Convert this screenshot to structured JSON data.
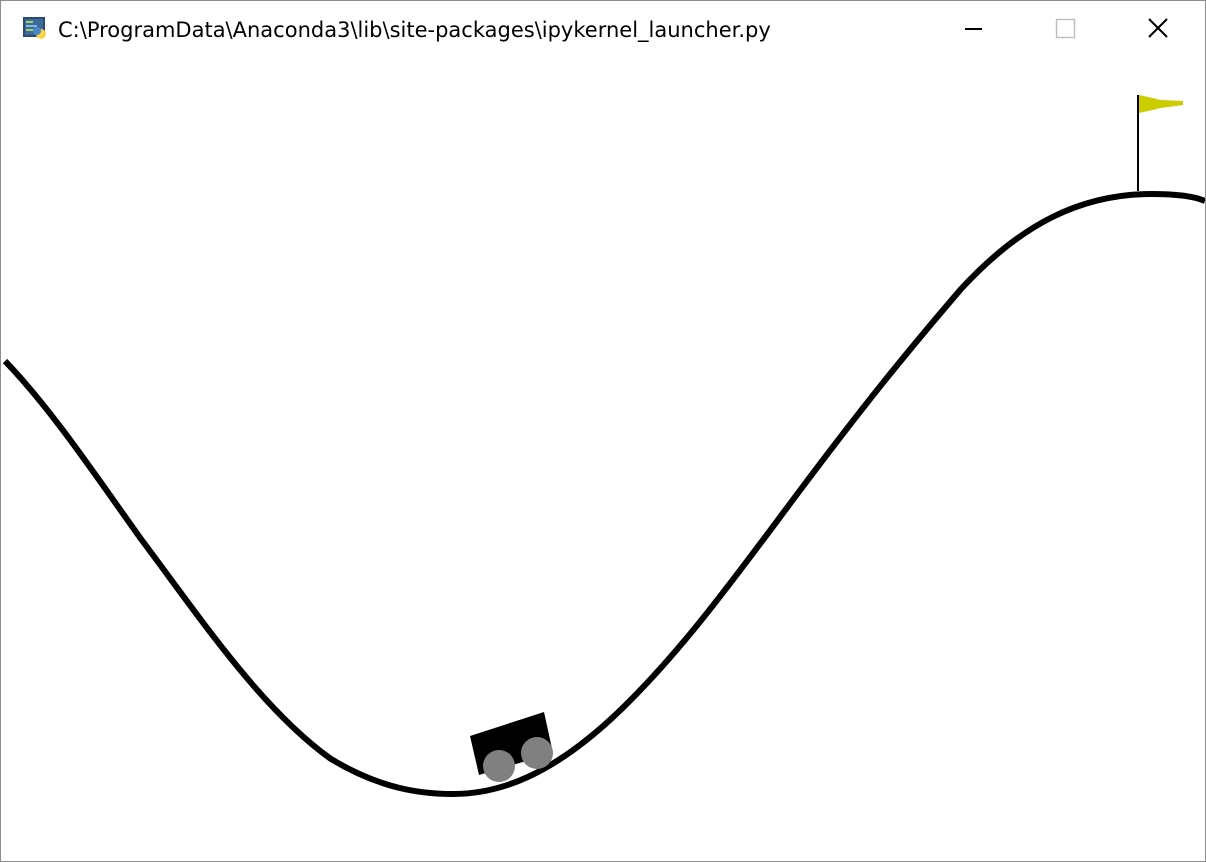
{
  "window": {
    "title": "C:\\ProgramData\\Anaconda3\\lib\\site-packages\\ipykernel_launcher.py",
    "icon": "python-app-icon",
    "buttons": {
      "minimize_icon": "minimize-icon",
      "maximize_icon": "maximize-icon",
      "close_icon": "close-icon"
    }
  },
  "game": {
    "environment": "MountainCar",
    "track_color": "#000000",
    "car_body_color": "#000000",
    "wheel_color": "#808080",
    "flag_color": "#cccc00",
    "flagpole_color": "#000000",
    "background_color": "#ffffff"
  }
}
